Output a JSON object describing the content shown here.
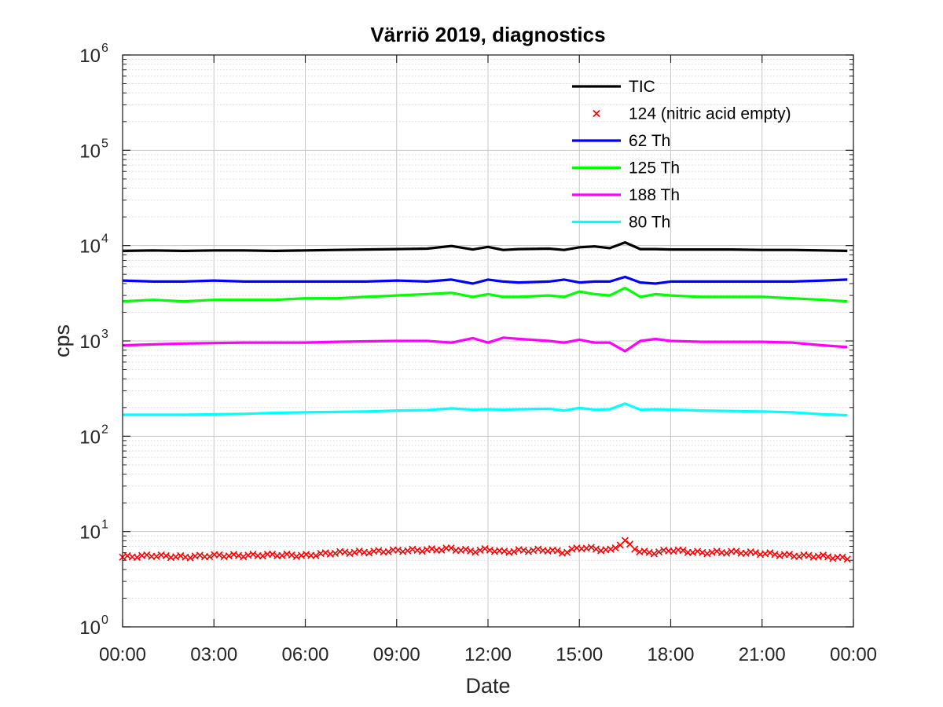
{
  "chart_data": {
    "type": "line",
    "title": "Värriö 2019, diagnostics",
    "xlabel": "Date",
    "ylabel": "cps",
    "y_scale": "log",
    "ylim": [
      1,
      1000000
    ],
    "y_ticks": [
      {
        "base": "10",
        "exp": "0"
      },
      {
        "base": "10",
        "exp": "1"
      },
      {
        "base": "10",
        "exp": "2"
      },
      {
        "base": "10",
        "exp": "3"
      },
      {
        "base": "10",
        "exp": "4"
      },
      {
        "base": "10",
        "exp": "5"
      },
      {
        "base": "10",
        "exp": "6"
      }
    ],
    "xlim": [
      "00:00",
      "24:00"
    ],
    "x_tick_labels": [
      "00:00",
      "03:00",
      "06:00",
      "09:00",
      "12:00",
      "15:00",
      "18:00",
      "21:00",
      "00:00"
    ],
    "x_ticks_hours": [
      0,
      3,
      6,
      9,
      12,
      15,
      18,
      21,
      24
    ],
    "grid": true,
    "minor_grid": true,
    "legend_position": "top-right",
    "x": [
      "00:00",
      "01:00",
      "02:00",
      "03:00",
      "04:00",
      "05:00",
      "06:00",
      "07:00",
      "08:00",
      "09:00",
      "10:00",
      "10:48",
      "11:30",
      "12:00",
      "12:30",
      "13:00",
      "14:00",
      "14:30",
      "15:00",
      "15:30",
      "16:00",
      "16:30",
      "17:00",
      "17:30",
      "18:00",
      "19:00",
      "20:00",
      "21:00",
      "22:00",
      "23:00",
      "23:48"
    ],
    "series": [
      {
        "name": "TIC",
        "style": "line",
        "color": "#000000",
        "values": [
          8800,
          8900,
          8800,
          8900,
          8900,
          8800,
          8900,
          9000,
          9100,
          9200,
          9300,
          9900,
          9100,
          9700,
          9000,
          9200,
          9300,
          9000,
          9600,
          9800,
          9400,
          10800,
          9200,
          9200,
          9100,
          9100,
          9100,
          9000,
          9000,
          8900,
          8800
        ]
      },
      {
        "name": "124 (nitric acid empty)",
        "style": "marker",
        "marker": "x",
        "color": "#ff0000",
        "values": [
          5.4,
          5.6,
          5.4,
          5.6,
          5.6,
          5.7,
          5.6,
          6.0,
          6.1,
          6.3,
          6.4,
          6.6,
          6.2,
          6.5,
          6.1,
          6.3,
          6.4,
          6.0,
          6.8,
          6.6,
          6.3,
          7.9,
          6.1,
          6.0,
          6.4,
          6.0,
          6.1,
          5.9,
          5.6,
          5.5,
          5.2
        ]
      },
      {
        "name": "62 Th",
        "style": "line",
        "color": "#0000ff",
        "values": [
          4300,
          4200,
          4200,
          4300,
          4200,
          4200,
          4200,
          4200,
          4200,
          4300,
          4200,
          4400,
          4000,
          4400,
          4200,
          4100,
          4200,
          4400,
          4100,
          4200,
          4200,
          4700,
          4100,
          4000,
          4200,
          4200,
          4200,
          4200,
          4200,
          4300,
          4400
        ]
      },
      {
        "name": "125 Th",
        "style": "line",
        "color": "#00ff00",
        "values": [
          2600,
          2700,
          2600,
          2700,
          2700,
          2700,
          2800,
          2800,
          2900,
          3000,
          3100,
          3200,
          2900,
          3100,
          2900,
          2900,
          3000,
          2900,
          3300,
          3100,
          3000,
          3600,
          2900,
          3100,
          3000,
          2900,
          2900,
          2900,
          2800,
          2700,
          2600
        ]
      },
      {
        "name": "188 Th",
        "style": "line",
        "color": "#ff00ff",
        "values": [
          900,
          920,
          940,
          950,
          960,
          960,
          960,
          980,
          990,
          1000,
          1000,
          960,
          1070,
          960,
          1080,
          1050,
          1000,
          960,
          1030,
          960,
          960,
          780,
          1000,
          1050,
          1000,
          980,
          980,
          980,
          960,
          900,
          860
        ]
      },
      {
        "name": "80 Th",
        "style": "line",
        "color": "#00ffff",
        "values": [
          168,
          168,
          168,
          170,
          172,
          176,
          178,
          180,
          182,
          186,
          188,
          196,
          190,
          192,
          190,
          192,
          194,
          186,
          198,
          190,
          192,
          220,
          190,
          192,
          190,
          186,
          184,
          182,
          178,
          170,
          166
        ]
      }
    ]
  }
}
